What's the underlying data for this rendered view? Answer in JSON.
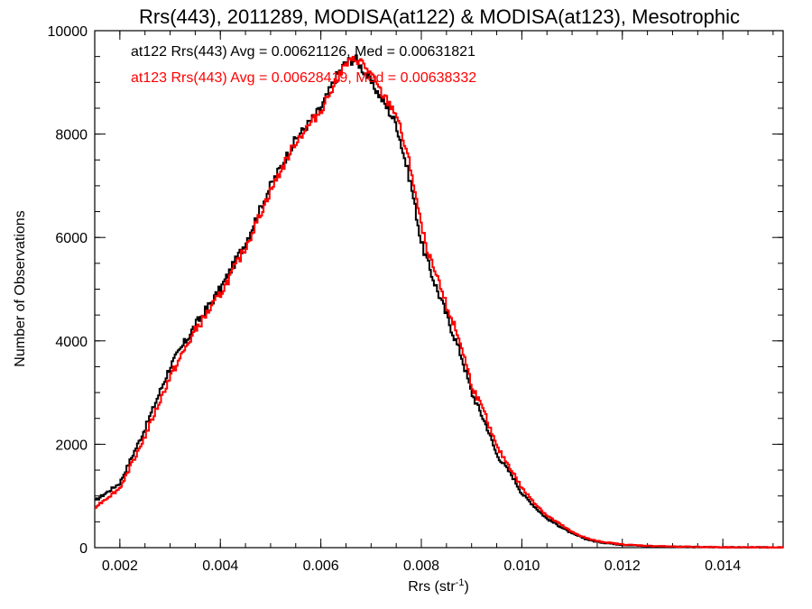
{
  "chart_data": {
    "type": "line",
    "title": "Rrs(443), 2011289, MODISA(at122) & MODISA(at123), Mesotrophic",
    "xlabel": "Rrs (str",
    "xlabel_sup": "-1",
    "xlabel_end": ")",
    "ylabel": "Number of Observations",
    "xlim": [
      0.0015,
      0.0152
    ],
    "ylim": [
      0,
      10000
    ],
    "x_ticks": [
      0.002,
      0.004,
      0.006,
      0.008,
      0.01,
      0.012,
      0.014
    ],
    "x_tick_labels": [
      "0.002",
      "0.004",
      "0.006",
      "0.008",
      "0.010",
      "0.012",
      "0.014"
    ],
    "y_ticks": [
      0,
      2000,
      4000,
      6000,
      8000,
      10000
    ],
    "y_tick_labels": [
      "0",
      "2000",
      "4000",
      "6000",
      "8000",
      "10000"
    ],
    "grid": false,
    "legend": [
      {
        "text": "at122 Rrs(443) Avg = 0.00621126, Med = 0.00631821",
        "color": "#000000"
      },
      {
        "text": "at123 Rrs(443) Avg = 0.00628419, Med = 0.00638332",
        "color": "#ff0000"
      }
    ],
    "series": [
      {
        "color": "#000000",
        "x": [
          0.0015,
          0.002,
          0.0025,
          0.003,
          0.0035,
          0.004,
          0.0045,
          0.005,
          0.0055,
          0.006,
          0.0063,
          0.0065,
          0.0067,
          0.0068,
          0.007,
          0.0072,
          0.0075,
          0.0078,
          0.008,
          0.0082,
          0.0085,
          0.0088,
          0.009,
          0.0093,
          0.0095,
          0.0098,
          0.01,
          0.0103,
          0.0105,
          0.0108,
          0.011,
          0.0113,
          0.0115,
          0.012,
          0.0125,
          0.013,
          0.0135,
          0.014,
          0.0145,
          0.0152
        ],
        "y": [
          900,
          1250,
          2300,
          3500,
          4300,
          5000,
          5900,
          7000,
          7900,
          8500,
          9100,
          9400,
          9450,
          9300,
          9000,
          8700,
          8200,
          7000,
          5900,
          5300,
          4500,
          3700,
          3000,
          2350,
          1800,
          1400,
          1050,
          750,
          560,
          390,
          270,
          160,
          110,
          55,
          30,
          18,
          12,
          8,
          5,
          3
        ]
      },
      {
        "color": "#ff0000",
        "x": [
          0.0015,
          0.002,
          0.0025,
          0.003,
          0.0035,
          0.004,
          0.0045,
          0.005,
          0.0055,
          0.006,
          0.0063,
          0.0065,
          0.0067,
          0.0068,
          0.007,
          0.0072,
          0.0075,
          0.0078,
          0.008,
          0.0082,
          0.0085,
          0.0088,
          0.009,
          0.0093,
          0.0095,
          0.0098,
          0.01,
          0.0103,
          0.0105,
          0.0108,
          0.011,
          0.0113,
          0.0115,
          0.012,
          0.0125,
          0.013,
          0.0135,
          0.014,
          0.0145,
          0.0152
        ],
        "y": [
          780,
          1150,
          2150,
          3300,
          4200,
          4900,
          5800,
          6900,
          7850,
          8450,
          9050,
          9350,
          9450,
          9400,
          9150,
          8800,
          8400,
          7300,
          6200,
          5500,
          4700,
          3900,
          3150,
          2500,
          1950,
          1500,
          1150,
          820,
          620,
          430,
          300,
          180,
          125,
          62,
          35,
          22,
          14,
          9,
          6,
          4
        ]
      }
    ]
  }
}
